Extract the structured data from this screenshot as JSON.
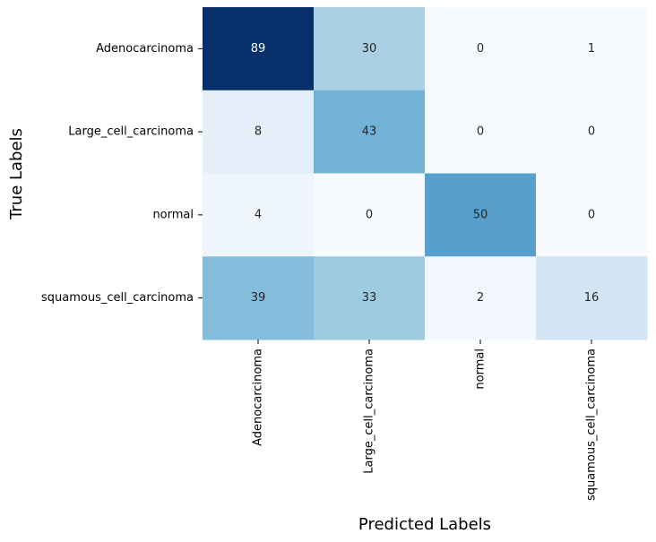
{
  "chart_data": {
    "type": "heatmap",
    "title": "",
    "xlabel": "Predicted Labels",
    "ylabel": "True Labels",
    "x_categories": [
      "Adenocarcinoma",
      "Large_cell_carcinoma",
      "normal",
      "squamous_cell_carcinoma"
    ],
    "y_categories": [
      "Adenocarcinoma",
      "Large_cell_carcinoma",
      "normal",
      "squamous_cell_carcinoma"
    ],
    "values": [
      [
        89,
        30,
        0,
        1
      ],
      [
        8,
        43,
        0,
        0
      ],
      [
        4,
        0,
        50,
        0
      ],
      [
        39,
        33,
        2,
        16
      ]
    ],
    "colormap": "Blues",
    "colorbar": false,
    "annotations": true
  }
}
